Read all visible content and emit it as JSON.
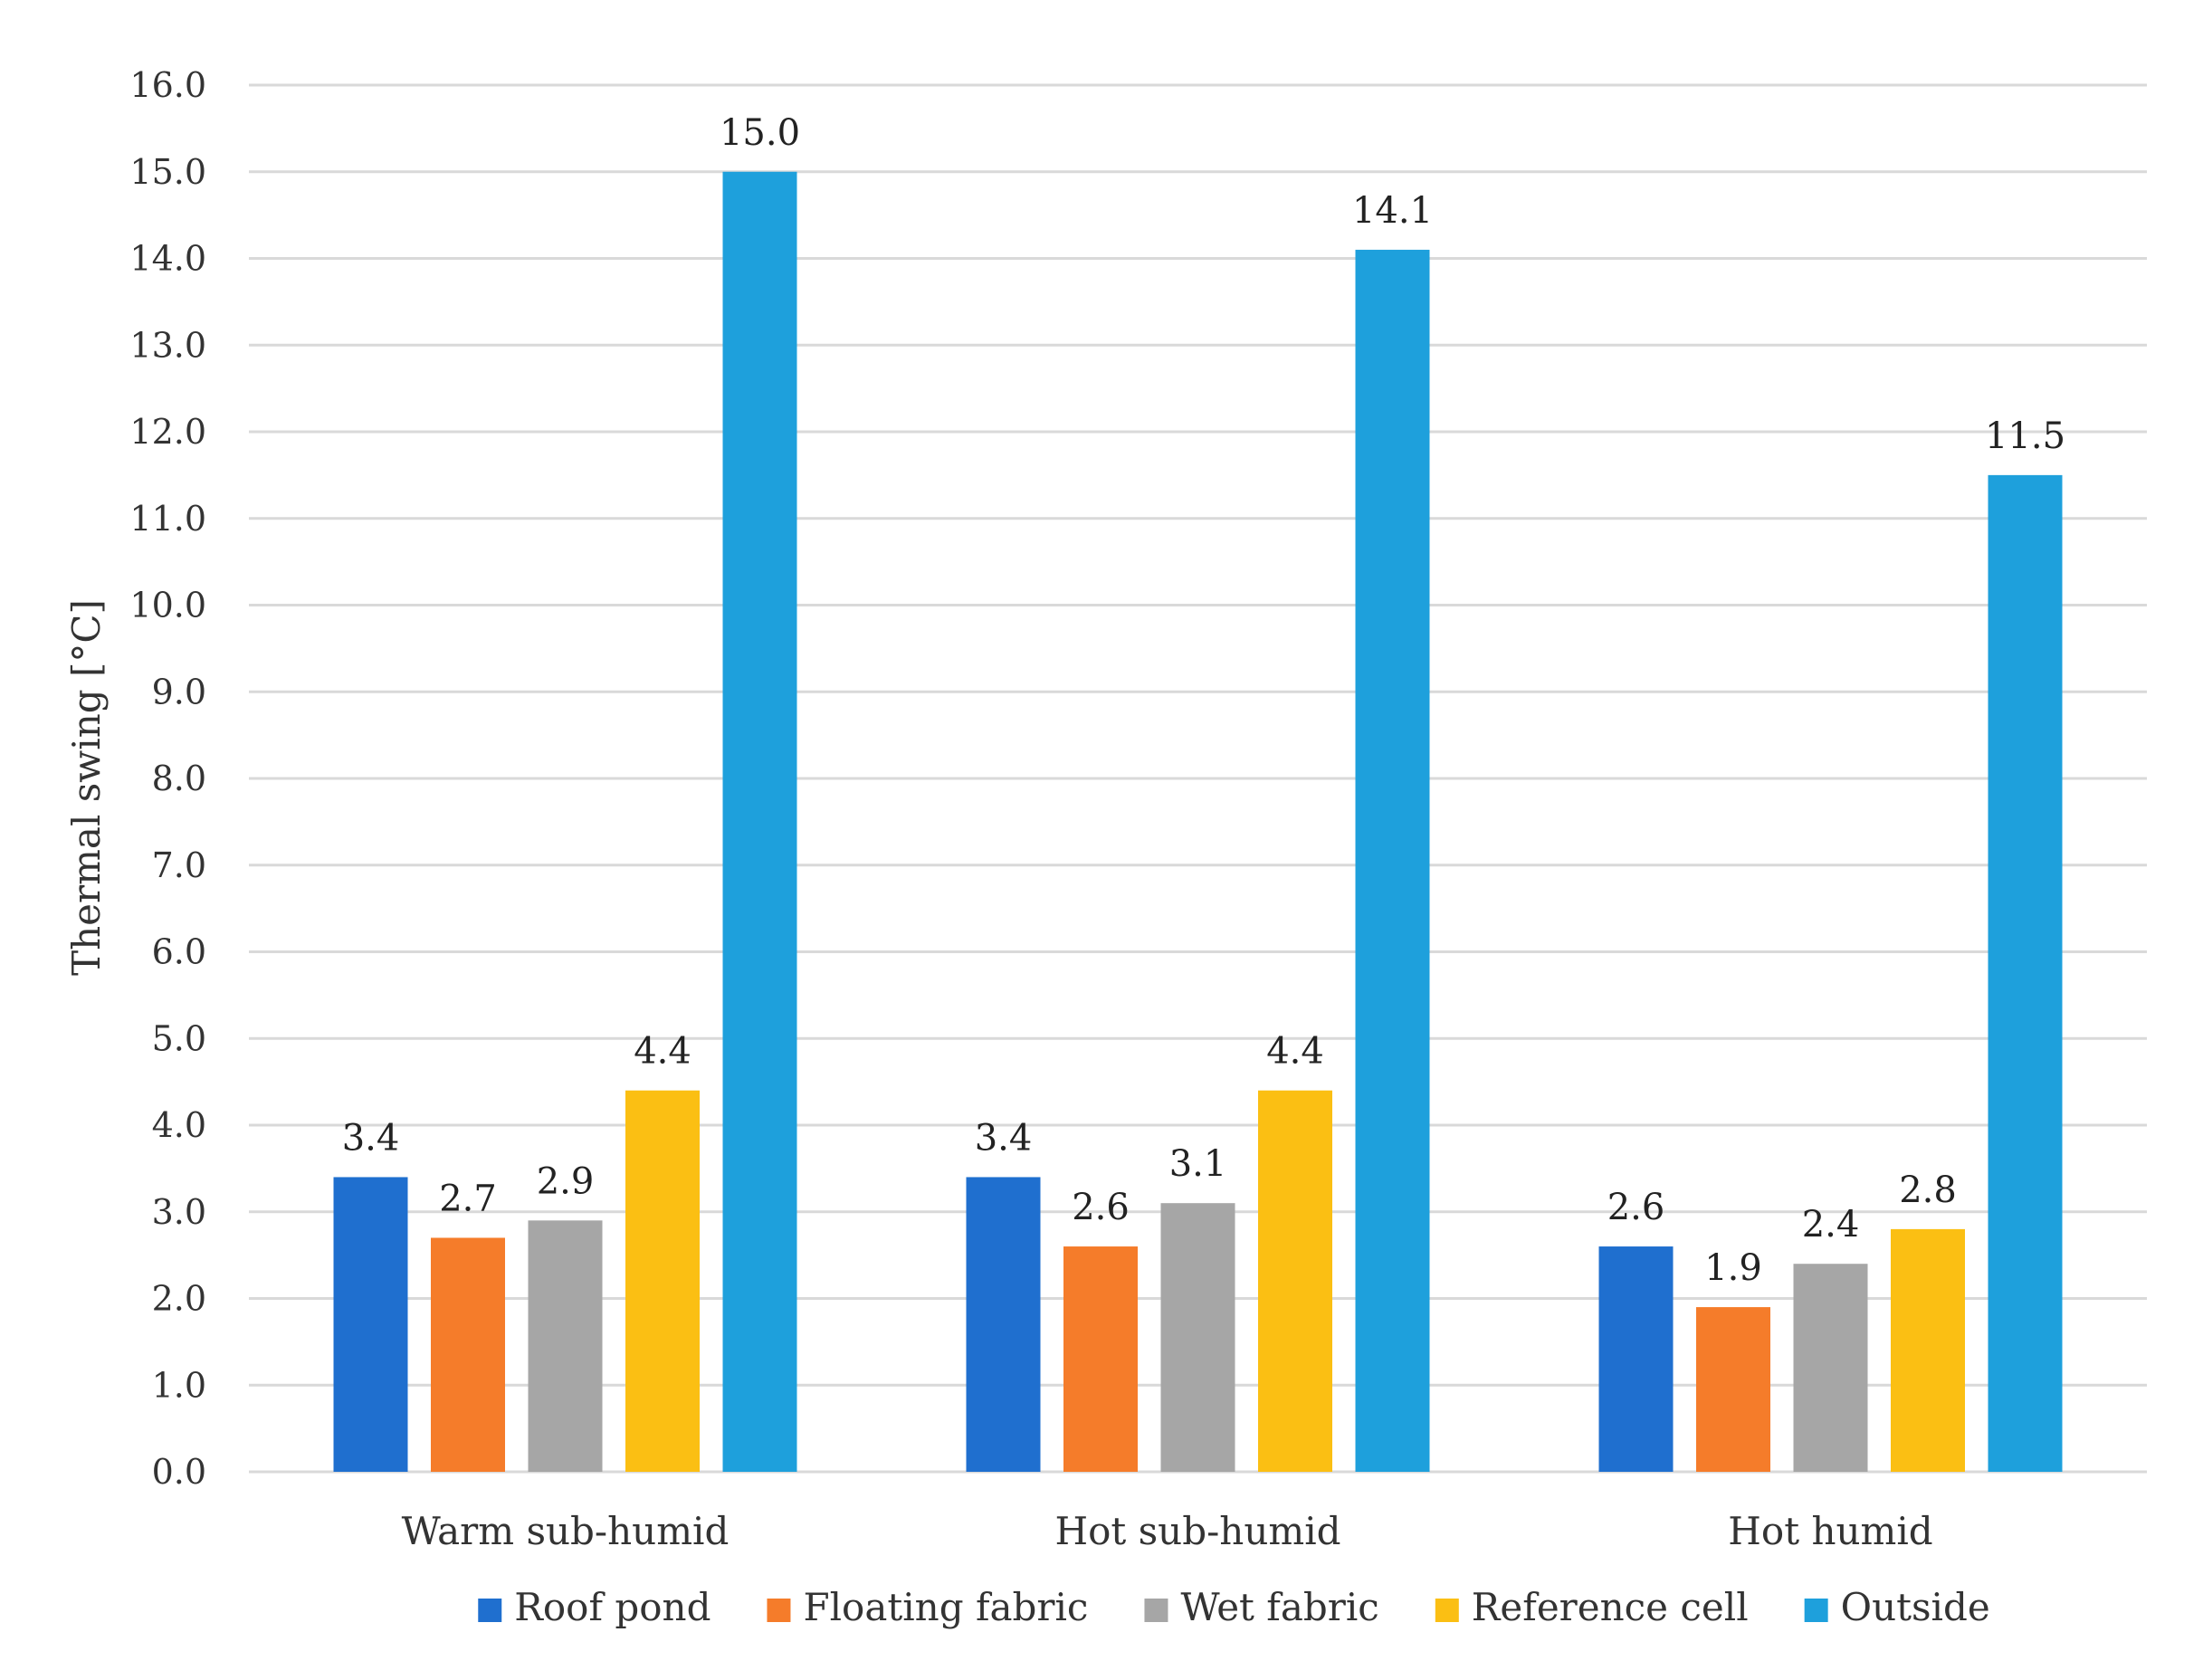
{
  "chart_data": {
    "type": "bar",
    "title": "",
    "xlabel": "",
    "ylabel": "Thermal swing [°C]",
    "ylim": [
      0,
      16
    ],
    "ytick_step": 1,
    "ytick_decimals": 1,
    "grid": true,
    "legend_position": "bottom",
    "categories": [
      "Warm sub-humid",
      "Hot sub-humid",
      "Hot humid"
    ],
    "series": [
      {
        "name": "Roof pond",
        "color": "#1f6fcf",
        "values": [
          3.4,
          3.4,
          2.6
        ]
      },
      {
        "name": "Floating fabric",
        "color": "#f57c2a",
        "values": [
          2.7,
          2.6,
          1.9
        ]
      },
      {
        "name": "Wet fabric",
        "color": "#a6a6a6",
        "values": [
          2.9,
          3.1,
          2.4
        ]
      },
      {
        "name": "Reference cell",
        "color": "#fbbf13",
        "values": [
          4.4,
          4.4,
          2.8
        ]
      },
      {
        "name": "Outside",
        "color": "#1ea0dc",
        "values": [
          15.0,
          14.1,
          11.5
        ]
      }
    ],
    "value_labels": [
      [
        "3.4",
        "3.4",
        "2.6"
      ],
      [
        "2.7",
        "2.6",
        "1.9"
      ],
      [
        "2.9",
        "3.1",
        "2.4"
      ],
      [
        "4.4",
        "4.4",
        "2.8"
      ],
      [
        "15.0",
        "14.1",
        "11.5"
      ]
    ],
    "gridline_color": "#d9d9d9",
    "text_color": "#333333"
  }
}
